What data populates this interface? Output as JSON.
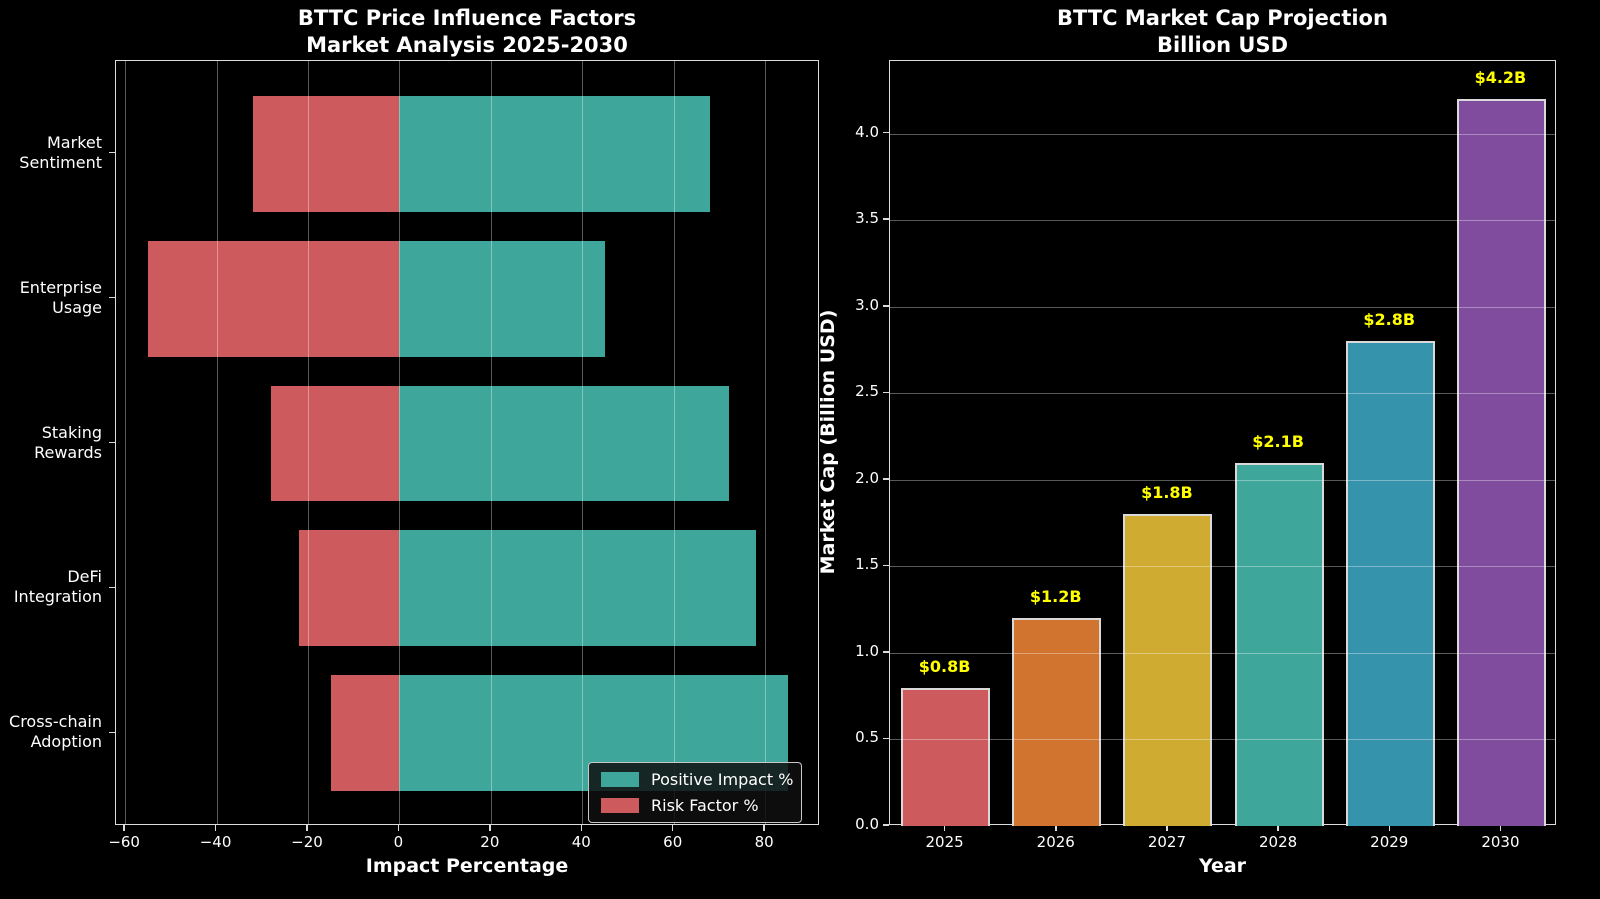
{
  "figure": {
    "background_color": "#000000",
    "text_color": "#ffffff",
    "grid_color": "rgba(255,255,255,0.35)",
    "spine_color": "#dcdcdc"
  },
  "chart_data": [
    {
      "type": "bar",
      "orientation": "horizontal",
      "title_lines": [
        "BTTC Price Influence Factors",
        "Market Analysis 2025-2030"
      ],
      "categories": [
        "Market\nSentiment",
        "Enterprise\nUsage",
        "Staking\nRewards",
        "DeFi\nIntegration",
        "Cross-chain\nAdoption"
      ],
      "series": [
        {
          "name": "Positive Impact %",
          "color": "#3EA69B",
          "values": [
            68,
            45,
            72,
            78,
            85
          ]
        },
        {
          "name": "Risk Factor %",
          "color": "#CD5B5E",
          "values": [
            -32,
            -55,
            -28,
            -22,
            -15
          ]
        }
      ],
      "xlabel": "Impact Percentage",
      "xlim": [
        -62,
        92
      ],
      "xticks": [
        -60,
        -40,
        -20,
        0,
        20,
        40,
        60,
        80
      ],
      "xtick_labels": [
        "−60",
        "−40",
        "−20",
        "0",
        "20",
        "40",
        "60",
        "80"
      ],
      "grid": true,
      "legend": {
        "position": "lower right",
        "entries": [
          "Positive Impact %",
          "Risk Factor %"
        ]
      }
    },
    {
      "type": "bar",
      "orientation": "vertical",
      "title_lines": [
        "BTTC Market Cap Projection",
        "Billion USD"
      ],
      "categories": [
        "2025",
        "2026",
        "2027",
        "2028",
        "2029",
        "2030"
      ],
      "values": [
        0.8,
        1.2,
        1.8,
        2.1,
        2.8,
        4.2
      ],
      "bar_labels": [
        "$0.8B",
        "$1.2B",
        "$1.8B",
        "$2.1B",
        "$2.8B",
        "$4.2B"
      ],
      "bar_colors": [
        "#CD5B5E",
        "#D0742F",
        "#CFAB32",
        "#3EA69B",
        "#3693AC",
        "#7F4C9E"
      ],
      "bar_edge_color": "#d9d9d9",
      "value_label_color": "#ffff00",
      "xlabel": "Year",
      "ylabel": "Market Cap (Billion USD)",
      "ylim": [
        0,
        4.42
      ],
      "yticks": [
        0.0,
        0.5,
        1.0,
        1.5,
        2.0,
        2.5,
        3.0,
        3.5,
        4.0
      ],
      "ytick_labels": [
        "0.0",
        "0.5",
        "1.0",
        "1.5",
        "2.0",
        "2.5",
        "3.0",
        "3.5",
        "4.0"
      ],
      "grid": true
    }
  ]
}
